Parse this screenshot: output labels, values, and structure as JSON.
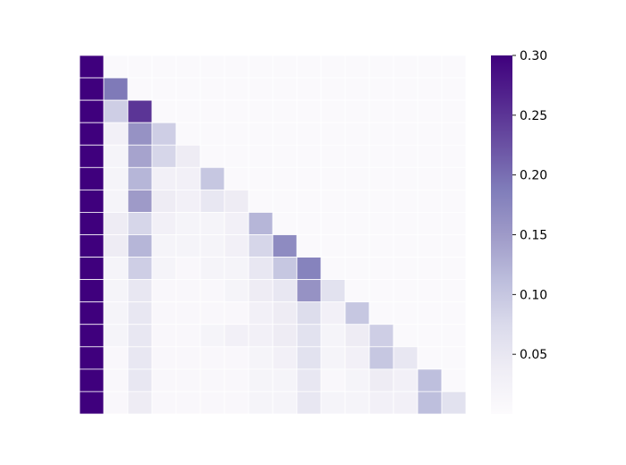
{
  "chart_data": {
    "type": "heatmap",
    "title": "",
    "xlabel": "",
    "ylabel": "",
    "rows": 16,
    "cols": 16,
    "mask": "upper-triangle (cells with column > row are blank)",
    "colormap": "Purples",
    "vmin": 0.0,
    "vmax": 0.3,
    "cell_edge_color": "#ffffff",
    "low_color": "#fcfbfd",
    "high_color": "#3f007d",
    "colorbar": {
      "position": "right",
      "ticks": [
        0.05,
        0.1,
        0.15,
        0.2,
        0.25,
        0.3
      ],
      "tick_labels": [
        "0.05",
        "0.10",
        "0.15",
        "0.20",
        "0.25",
        "0.30"
      ]
    },
    "values": [
      [
        0.3
      ],
      [
        0.3,
        0.19
      ],
      [
        0.3,
        0.09,
        0.25
      ],
      [
        0.3,
        0.03,
        0.16,
        0.09
      ],
      [
        0.3,
        0.02,
        0.14,
        0.08,
        0.04
      ],
      [
        0.3,
        0.02,
        0.12,
        0.03,
        0.03,
        0.1
      ],
      [
        0.3,
        0.02,
        0.15,
        0.04,
        0.03,
        0.05,
        0.04
      ],
      [
        0.3,
        0.04,
        0.08,
        0.03,
        0.02,
        0.02,
        0.03,
        0.12
      ],
      [
        0.3,
        0.04,
        0.12,
        0.02,
        0.02,
        0.02,
        0.03,
        0.08,
        0.17
      ],
      [
        0.3,
        0.02,
        0.09,
        0.02,
        0.01,
        0.02,
        0.02,
        0.05,
        0.1,
        0.18
      ],
      [
        0.3,
        0.02,
        0.05,
        0.01,
        0.01,
        0.01,
        0.02,
        0.04,
        0.05,
        0.16,
        0.06
      ],
      [
        0.3,
        0.02,
        0.05,
        0.01,
        0.01,
        0.01,
        0.01,
        0.03,
        0.04,
        0.07,
        0.03,
        0.1
      ],
      [
        0.3,
        0.02,
        0.05,
        0.01,
        0.01,
        0.02,
        0.03,
        0.03,
        0.04,
        0.06,
        0.02,
        0.04,
        0.09
      ],
      [
        0.3,
        0.01,
        0.05,
        0.01,
        0.01,
        0.01,
        0.01,
        0.02,
        0.03,
        0.06,
        0.02,
        0.03,
        0.1,
        0.05
      ],
      [
        0.3,
        0.01,
        0.05,
        0.01,
        0.01,
        0.01,
        0.01,
        0.02,
        0.02,
        0.05,
        0.01,
        0.02,
        0.04,
        0.03,
        0.11
      ],
      [
        0.3,
        0.01,
        0.04,
        0.01,
        0.01,
        0.01,
        0.01,
        0.02,
        0.02,
        0.05,
        0.02,
        0.02,
        0.03,
        0.03,
        0.11,
        0.06
      ]
    ],
    "masked_cell_value": 0.005
  }
}
